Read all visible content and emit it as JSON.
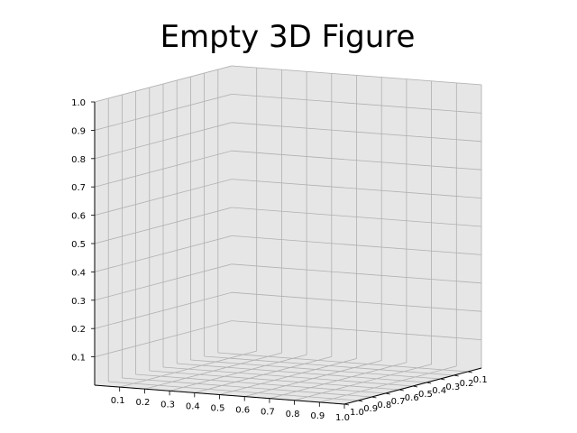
{
  "chart_data": {
    "type": "scatter",
    "title": "Empty 3D Figure",
    "projection": "3d",
    "series": [],
    "xlim": [
      0,
      1
    ],
    "ylim": [
      0,
      1
    ],
    "zlim": [
      0,
      1
    ],
    "x_ticks": [
      "0.1",
      "0.2",
      "0.3",
      "0.4",
      "0.5",
      "0.6",
      "0.7",
      "0.8",
      "0.9",
      "1.0"
    ],
    "y_ticks": [
      "0.1",
      "0.2",
      "0.3",
      "0.4",
      "0.5",
      "0.6",
      "0.7",
      "0.8",
      "0.9",
      "1.0"
    ],
    "z_ticks": [
      "0.1",
      "0.2",
      "0.3",
      "0.4",
      "0.5",
      "0.6",
      "0.7",
      "0.8",
      "0.9",
      "1.0"
    ],
    "grid": true,
    "pane_color": "#e6e6e6",
    "grid_color": "#b0b0b0"
  }
}
